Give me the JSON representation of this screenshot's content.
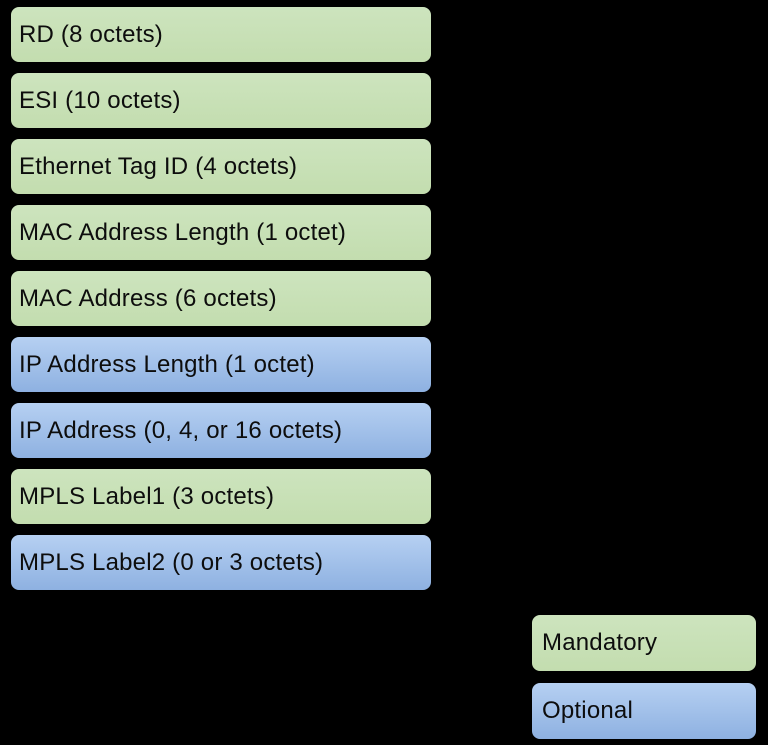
{
  "diagram": {
    "kind": "evpn-route-field-format",
    "fields": [
      {
        "label": "RD (8 octets)",
        "type": "mandatory"
      },
      {
        "label": "ESI (10 octets)",
        "type": "mandatory"
      },
      {
        "label": "Ethernet Tag ID (4 octets)",
        "type": "mandatory"
      },
      {
        "label": "MAC Address Length (1 octet)",
        "type": "mandatory"
      },
      {
        "label": "MAC Address (6 octets)",
        "type": "mandatory"
      },
      {
        "label": "IP Address Length (1 octet)",
        "type": "optional"
      },
      {
        "label": "IP Address (0, 4, or 16 octets)",
        "type": "optional"
      },
      {
        "label": "MPLS Label1 (3 octets)",
        "type": "mandatory"
      },
      {
        "label": "MPLS Label2 (0 or 3 octets)",
        "type": "optional"
      }
    ],
    "legend": {
      "items": [
        {
          "label": "Mandatory",
          "type": "mandatory"
        },
        {
          "label": "Optional",
          "type": "optional"
        }
      ]
    },
    "colors": {
      "background": "#000000",
      "border": "#000000",
      "text": "#0d0d0d",
      "mandatory_fill": "#c6dfb4",
      "optional_fill_top": "#b6d0f2",
      "optional_fill_bottom": "#8eb1e1"
    }
  }
}
